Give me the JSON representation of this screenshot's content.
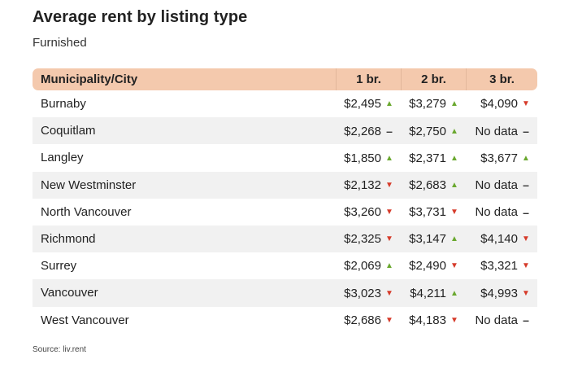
{
  "title": "Average rent by listing type",
  "subtitle": "Furnished",
  "source": "Source: liv.rent",
  "colors": {
    "header_bg": "#f4c9ad",
    "up": "#6aa82f",
    "down": "#d63b2a",
    "stripe": "#f1f1f1"
  },
  "chart_data": {
    "type": "table",
    "title": "Average rent by listing type",
    "subtitle": "Furnished",
    "columns": [
      "Municipality/City",
      "1 br.",
      "2 br.",
      "3 br."
    ],
    "rows": [
      {
        "city": "Burnaby",
        "cells": [
          {
            "value": "$2,495",
            "trend": "up"
          },
          {
            "value": "$3,279",
            "trend": "up"
          },
          {
            "value": "$4,090",
            "trend": "down"
          }
        ]
      },
      {
        "city": "Coquitlam",
        "cells": [
          {
            "value": "$2,268",
            "trend": "flat"
          },
          {
            "value": "$2,750",
            "trend": "up"
          },
          {
            "value": "No data",
            "trend": "flat"
          }
        ]
      },
      {
        "city": "Langley",
        "cells": [
          {
            "value": "$1,850",
            "trend": "up"
          },
          {
            "value": "$2,371",
            "trend": "up"
          },
          {
            "value": "$3,677",
            "trend": "up"
          }
        ]
      },
      {
        "city": "New Westminster",
        "cells": [
          {
            "value": "$2,132",
            "trend": "down"
          },
          {
            "value": "$2,683",
            "trend": "up"
          },
          {
            "value": "No data",
            "trend": "flat"
          }
        ]
      },
      {
        "city": "North Vancouver",
        "cells": [
          {
            "value": "$3,260",
            "trend": "down"
          },
          {
            "value": "$3,731",
            "trend": "down"
          },
          {
            "value": "No data",
            "trend": "flat"
          }
        ]
      },
      {
        "city": "Richmond",
        "cells": [
          {
            "value": "$2,325",
            "trend": "down"
          },
          {
            "value": "$3,147",
            "trend": "up"
          },
          {
            "value": "$4,140",
            "trend": "down"
          }
        ]
      },
      {
        "city": "Surrey",
        "cells": [
          {
            "value": "$2,069",
            "trend": "up"
          },
          {
            "value": "$2,490",
            "trend": "down"
          },
          {
            "value": "$3,321",
            "trend": "down"
          }
        ]
      },
      {
        "city": "Vancouver",
        "cells": [
          {
            "value": "$3,023",
            "trend": "down"
          },
          {
            "value": "$4,211",
            "trend": "up"
          },
          {
            "value": "$4,993",
            "trend": "down"
          }
        ]
      },
      {
        "city": "West Vancouver",
        "cells": [
          {
            "value": "$2,686",
            "trend": "down"
          },
          {
            "value": "$4,183",
            "trend": "down"
          },
          {
            "value": "No data",
            "trend": "flat"
          }
        ]
      }
    ]
  }
}
